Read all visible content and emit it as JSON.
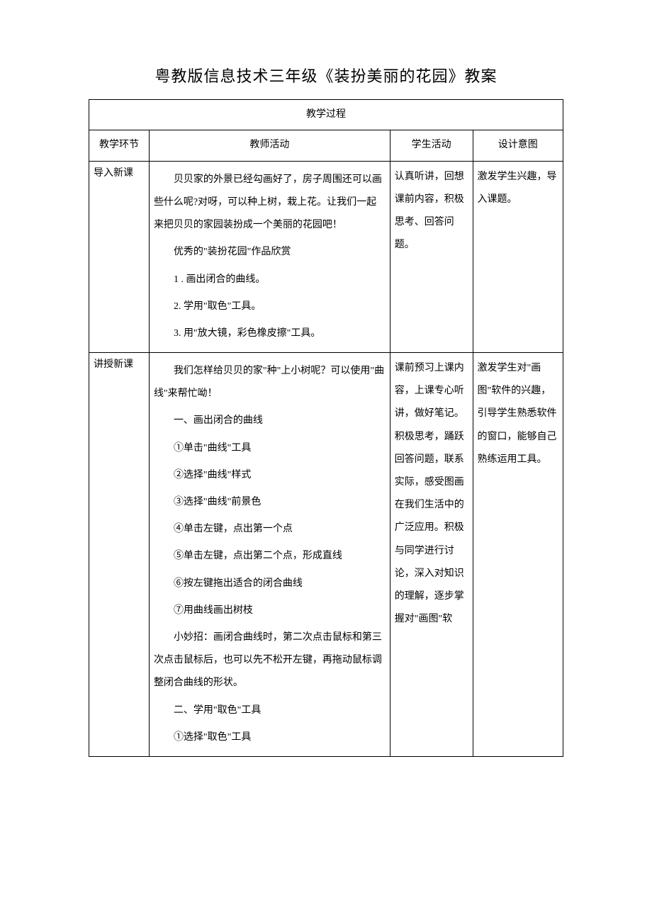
{
  "title": "粤教版信息技术三年级《装扮美丽的花园》教案",
  "process_title": "教学过程",
  "headers": {
    "stage": "教学环节",
    "teacher": "教师活动",
    "student": "学生活动",
    "purpose": "设计意图"
  },
  "row1": {
    "stage": "导入新课",
    "teacher_p1": "贝贝家的外景已经勾画好了，房子周围还可以画些什么呢?对呀，可以种上树，栽上花。让我们一起来把贝贝的家园装扮成一个美丽的花园吧！",
    "teacher_p2": "优秀的\"装扮花园\"作品欣赏",
    "teacher_p3": "1 . 画出闭合的曲线。",
    "teacher_p4": "2. 学用\"取色\"工具。",
    "teacher_p5": "3. 用\"放大镜，彩色橡皮擦\"工具。",
    "student": "认真听讲，回想课前内容，积极思考、回答问题。",
    "purpose": "激发学生兴趣，导入课题。"
  },
  "row2": {
    "stage": "讲授新课",
    "teacher_p1": "我们怎样给贝贝的家\"种\"上小树呢？可以使用\"曲线\"来帮忙呦！",
    "teacher_p2": "一、画出闭合的曲线",
    "teacher_p3": "①单击\"曲线\"工具",
    "teacher_p4": "②选择\"曲线\"样式",
    "teacher_p5": "③选择\"曲线\"前景色",
    "teacher_p6": "④单击左键，点出第一个点",
    "teacher_p7": "⑤单击左键，点出第二个点，形成直线",
    "teacher_p8": "⑥按左键拖出适合的闭合曲线",
    "teacher_p9": "⑦用曲线画出树枝",
    "teacher_p10": "小妙招：画闭合曲线时，第二次点击鼠标和第三次点击鼠标后，也可以先不松开左键，再拖动鼠标调整闭合曲线的形状。",
    "teacher_p11": "二、学用\"取色\"工具",
    "teacher_p12": "①选择\"取色\"工具",
    "student": "课前预习上课内容，上课专心听讲，做好笔记。积极思考，踊跃回答问题，联系实际，感受图画在我们生活中的广泛应用。积极与同学进行讨论，深入对知识的理解，逐步掌握对\"画图\"软",
    "purpose": "激发学生对\"画图\"软件的兴趣，引导学生熟悉软件的窗口，能够自己熟练运用工具。"
  },
  "colors": {
    "background": "#ffffff",
    "border": "#000000",
    "text": "#000000"
  },
  "typography": {
    "title_fontsize": 22,
    "body_fontsize": 14,
    "font_family": "SimSun"
  }
}
